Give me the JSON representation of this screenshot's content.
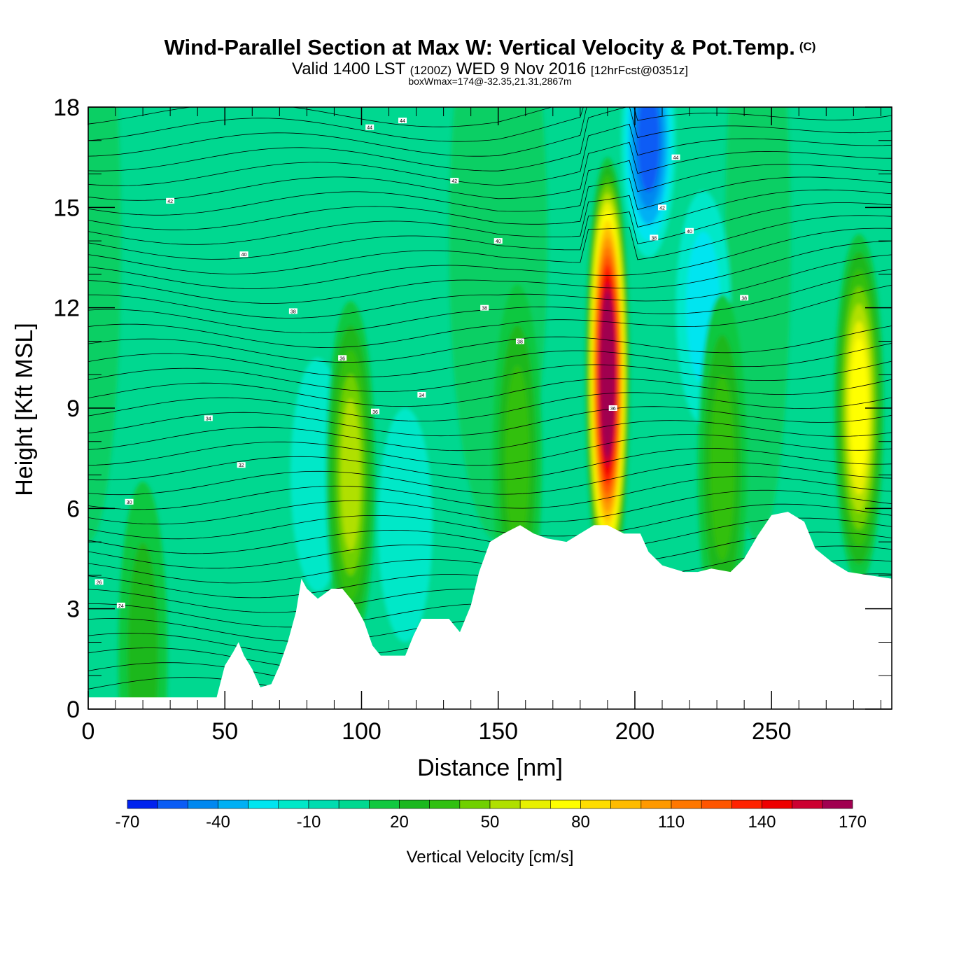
{
  "header": {
    "title": "Wind-Parallel Section at Max W: Vertical Velocity & Pot.Temp.",
    "title_mark": "(C)",
    "valid_prefix": "Valid 1400 LST",
    "valid_z": "(1200Z)",
    "valid_date": "WED 9 Nov 2016",
    "valid_fcst": "[12hrFcst@0351z]",
    "boxmax": "boxWmax=174@-32.35,21.31,2867m"
  },
  "chart_data": {
    "type": "heatmap",
    "xlabel": "Distance [nm]",
    "ylabel": "Height [Kft MSL]",
    "xlim": [
      0,
      294
    ],
    "ylim": [
      0,
      18
    ],
    "xticks": [
      0,
      50,
      100,
      150,
      200,
      250
    ],
    "yticks": [
      0,
      3,
      6,
      9,
      12,
      15,
      18
    ],
    "colorbar": {
      "label": "Vertical Velocity [cm/s]",
      "ticks": [
        -70,
        -40,
        -10,
        20,
        50,
        80,
        110,
        140,
        170
      ],
      "levels": [
        -70,
        -60,
        -50,
        -40,
        -30,
        -20,
        -10,
        0,
        10,
        20,
        30,
        40,
        50,
        60,
        70,
        80,
        90,
        100,
        110,
        120,
        130,
        140,
        150,
        160,
        170
      ],
      "colors": [
        "#0022ee",
        "#0a5cf5",
        "#0088f0",
        "#00b0f4",
        "#00e5f0",
        "#00e8c8",
        "#00dcb0",
        "#00d890",
        "#10c840",
        "#1ab81e",
        "#30c010",
        "#70d000",
        "#b0e000",
        "#e8f000",
        "#ffff00",
        "#ffdd00",
        "#ffbb00",
        "#ff9900",
        "#ff7700",
        "#ff5500",
        "#ff2200",
        "#ee0000",
        "#cc0030",
        "#a00050"
      ]
    },
    "terrain": [
      [
        0,
        0.35
      ],
      [
        47,
        0.35
      ],
      [
        50,
        1.3
      ],
      [
        53,
        1.7
      ],
      [
        55,
        2
      ],
      [
        57,
        1.6
      ],
      [
        60,
        1.2
      ],
      [
        63,
        0.65
      ],
      [
        67,
        0.75
      ],
      [
        70,
        1.3
      ],
      [
        73,
        2
      ],
      [
        76,
        2.9
      ],
      [
        78,
        3.9
      ],
      [
        80,
        3.6
      ],
      [
        84,
        3.3
      ],
      [
        89,
        3.6
      ],
      [
        93,
        3.6
      ],
      [
        97,
        3.2
      ],
      [
        101,
        2.6
      ],
      [
        104,
        1.9
      ],
      [
        107,
        1.6
      ],
      [
        116,
        1.6
      ],
      [
        119,
        2.2
      ],
      [
        122,
        2.7
      ],
      [
        132,
        2.7
      ],
      [
        136,
        2.3
      ],
      [
        140,
        3.1
      ],
      [
        143,
        4.1
      ],
      [
        147,
        5
      ],
      [
        152,
        5.25
      ],
      [
        158,
        5.5
      ],
      [
        163,
        5.25
      ],
      [
        168,
        5.1
      ],
      [
        175,
        5
      ],
      [
        181,
        5.3
      ],
      [
        185,
        5.5
      ],
      [
        190,
        5.5
      ],
      [
        196,
        5.25
      ],
      [
        202,
        5.25
      ],
      [
        205,
        4.7
      ],
      [
        210,
        4.3
      ],
      [
        218,
        4.1
      ],
      [
        223,
        4.1
      ],
      [
        228,
        4.2
      ],
      [
        235,
        4.1
      ],
      [
        240,
        4.5
      ],
      [
        245,
        5.2
      ],
      [
        250,
        5.8
      ],
      [
        256,
        5.9
      ],
      [
        262,
        5.6
      ],
      [
        266,
        4.8
      ],
      [
        272,
        4.4
      ],
      [
        278,
        4.1
      ],
      [
        294,
        3.9
      ]
    ],
    "updrafts": [
      {
        "x": 190,
        "y": 10,
        "peak": 174
      },
      {
        "x": 96,
        "y": 7,
        "peak": 58
      },
      {
        "x": 282,
        "y": 9,
        "peak": 74
      },
      {
        "x": 232,
        "y": 7.2,
        "peak": 35
      },
      {
        "x": 157,
        "y": 7.5,
        "peak": 30
      },
      {
        "x": 20,
        "y": 1.6,
        "peak": 25
      }
    ],
    "downdrafts": [
      {
        "x": 205,
        "y": 17,
        "peak": -50
      },
      {
        "x": 225,
        "y": 12,
        "peak": -25
      },
      {
        "x": 116,
        "y": 5.5,
        "peak": -18
      },
      {
        "x": 84,
        "y": 7,
        "peak": -15
      }
    ],
    "isentrope_labels": [
      "44",
      "44",
      "42",
      "42",
      "40",
      "40",
      "38",
      "38",
      "36",
      "36",
      "34",
      "34",
      "32",
      "30",
      "26",
      "24",
      "44",
      "42",
      "40",
      "38",
      "38",
      "38",
      "36"
    ]
  }
}
